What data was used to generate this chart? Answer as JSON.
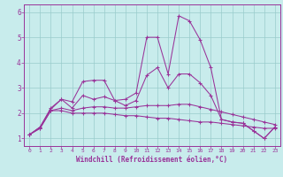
{
  "title": "",
  "xlabel": "Windchill (Refroidissement éolien,°C)",
  "ylabel": "",
  "bg_color": "#c8ecec",
  "line_color": "#993399",
  "grid_color": "#99cccc",
  "xlim": [
    -0.5,
    23.5
  ],
  "ylim": [
    0.7,
    6.3
  ],
  "yticks": [
    1,
    2,
    3,
    4,
    5,
    6
  ],
  "xticks": [
    0,
    1,
    2,
    3,
    4,
    5,
    6,
    7,
    8,
    9,
    10,
    11,
    12,
    13,
    14,
    15,
    16,
    17,
    18,
    19,
    20,
    21,
    22,
    23
  ],
  "series": [
    [
      1.15,
      1.45,
      2.15,
      2.55,
      2.45,
      3.25,
      3.3,
      3.3,
      2.5,
      2.55,
      2.8,
      5.0,
      5.0,
      3.55,
      5.85,
      5.65,
      4.9,
      3.8,
      1.75,
      1.65,
      1.6,
      1.3,
      1.0,
      1.45
    ],
    [
      1.15,
      1.45,
      2.2,
      2.55,
      2.2,
      2.7,
      2.55,
      2.65,
      2.5,
      2.3,
      2.5,
      3.5,
      3.8,
      3.0,
      3.55,
      3.55,
      3.2,
      2.7,
      1.75,
      1.65,
      1.6,
      1.3,
      1.0,
      1.45
    ],
    [
      1.15,
      1.4,
      2.1,
      2.2,
      2.1,
      2.2,
      2.25,
      2.25,
      2.2,
      2.2,
      2.25,
      2.3,
      2.3,
      2.3,
      2.35,
      2.35,
      2.25,
      2.15,
      2.05,
      1.95,
      1.85,
      1.75,
      1.65,
      1.55
    ],
    [
      1.15,
      1.4,
      2.1,
      2.1,
      2.0,
      2.0,
      2.0,
      2.0,
      1.95,
      1.9,
      1.9,
      1.85,
      1.8,
      1.8,
      1.75,
      1.7,
      1.65,
      1.65,
      1.6,
      1.55,
      1.5,
      1.45,
      1.4,
      1.4
    ]
  ]
}
